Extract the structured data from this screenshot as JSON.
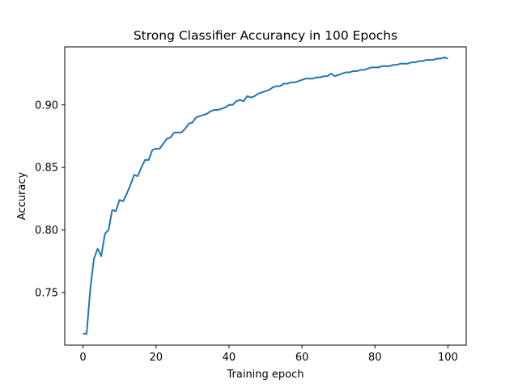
{
  "chart_data": {
    "type": "line",
    "title": "Strong Classifier Accurancy in 100 Epochs",
    "xlabel": "Training epoch",
    "ylabel": "Accuracy",
    "xlim": [
      -5,
      105
    ],
    "ylim": [
      0.7079,
      0.9464
    ],
    "x_ticks": [
      0,
      20,
      40,
      60,
      80,
      100
    ],
    "x_tick_labels": [
      "0",
      "20",
      "40",
      "60",
      "80",
      "100"
    ],
    "y_ticks": [
      0.75,
      0.8,
      0.85,
      0.9
    ],
    "y_tick_labels": [
      "0.75",
      "0.80",
      "0.85",
      "0.90"
    ],
    "grid": false,
    "series": [
      {
        "color": "#1f77b4",
        "x": [
          0,
          1,
          2,
          3,
          4,
          5,
          6,
          7,
          8,
          9,
          10,
          11,
          12,
          13,
          14,
          15,
          16,
          17,
          18,
          19,
          20,
          21,
          22,
          23,
          24,
          25,
          26,
          27,
          28,
          29,
          30,
          31,
          32,
          33,
          34,
          35,
          36,
          37,
          38,
          39,
          40,
          41,
          42,
          43,
          44,
          45,
          46,
          47,
          48,
          49,
          50,
          51,
          52,
          53,
          54,
          55,
          56,
          57,
          58,
          59,
          60,
          61,
          62,
          63,
          64,
          65,
          66,
          67,
          68,
          69,
          70,
          71,
          72,
          73,
          74,
          75,
          76,
          77,
          78,
          79,
          80,
          81,
          82,
          83,
          84,
          85,
          86,
          87,
          88,
          89,
          90,
          91,
          92,
          93,
          94,
          95,
          96,
          97,
          98,
          99,
          100
        ],
        "y": [
          0.717,
          0.717,
          0.753,
          0.777,
          0.785,
          0.779,
          0.797,
          0.8,
          0.816,
          0.815,
          0.824,
          0.823,
          0.829,
          0.836,
          0.844,
          0.843,
          0.85,
          0.856,
          0.856,
          0.864,
          0.865,
          0.865,
          0.869,
          0.873,
          0.874,
          0.878,
          0.878,
          0.878,
          0.881,
          0.885,
          0.886,
          0.89,
          0.891,
          0.892,
          0.893,
          0.895,
          0.896,
          0.896,
          0.897,
          0.898,
          0.9,
          0.9,
          0.903,
          0.904,
          0.903,
          0.907,
          0.906,
          0.907,
          0.909,
          0.91,
          0.911,
          0.912,
          0.914,
          0.915,
          0.915,
          0.917,
          0.917,
          0.918,
          0.918,
          0.919,
          0.92,
          0.921,
          0.921,
          0.921,
          0.922,
          0.922,
          0.923,
          0.923,
          0.925,
          0.923,
          0.924,
          0.925,
          0.926,
          0.926,
          0.927,
          0.927,
          0.928,
          0.928,
          0.929,
          0.93,
          0.93,
          0.93,
          0.931,
          0.931,
          0.931,
          0.932,
          0.932,
          0.933,
          0.933,
          0.933,
          0.934,
          0.934,
          0.935,
          0.935,
          0.936,
          0.936,
          0.936,
          0.937,
          0.937,
          0.938,
          0.937
        ]
      }
    ]
  }
}
